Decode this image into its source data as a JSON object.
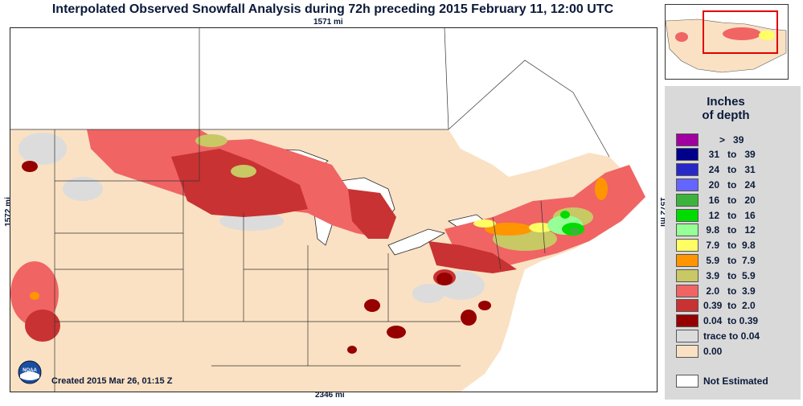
{
  "title": "Interpolated Observed Snowfall Analysis during 72h preceding 2015 February 11, 12:00 UTC",
  "distances": {
    "top": "1571 mi",
    "bottom": "2346 mi",
    "left": "1572 mi",
    "right": "1572 mi"
  },
  "created": "Created 2015 Mar 26, 01:15 Z",
  "logo_text": "NOAA",
  "legend": {
    "title_line1": "Inches",
    "title_line2": "of depth",
    "items": [
      {
        "label": "      >   39",
        "color": "#a000a0"
      },
      {
        "label": "  31   to   39",
        "color": "#00008c"
      },
      {
        "label": "  24   to   31",
        "color": "#2828c8"
      },
      {
        "label": "  20   to   24",
        "color": "#6464ff"
      },
      {
        "label": "  16   to   20",
        "color": "#3cb43c"
      },
      {
        "label": "  12   to   16",
        "color": "#00dc00"
      },
      {
        "label": " 9.8   to   12",
        "color": "#96ff96"
      },
      {
        "label": " 7.9   to  9.8",
        "color": "#ffff64"
      },
      {
        "label": " 5.9   to  7.9",
        "color": "#ff9600"
      },
      {
        "label": " 3.9   to  5.9",
        "color": "#c8c864"
      },
      {
        "label": " 2.0   to  3.9",
        "color": "#f06464"
      },
      {
        "label": "0.39  to  2.0",
        "color": "#c83232"
      },
      {
        "label": "0.04  to 0.39",
        "color": "#960000"
      },
      {
        "label": "trace to 0.04",
        "color": "#dcdcdc"
      },
      {
        "label": "0.00",
        "color": "#fae1c3"
      }
    ],
    "not_estimated": "Not Estimated"
  },
  "colors": {
    "land": "#fae1c3",
    "water": "#ffffff",
    "inset_box": "#e00000"
  }
}
